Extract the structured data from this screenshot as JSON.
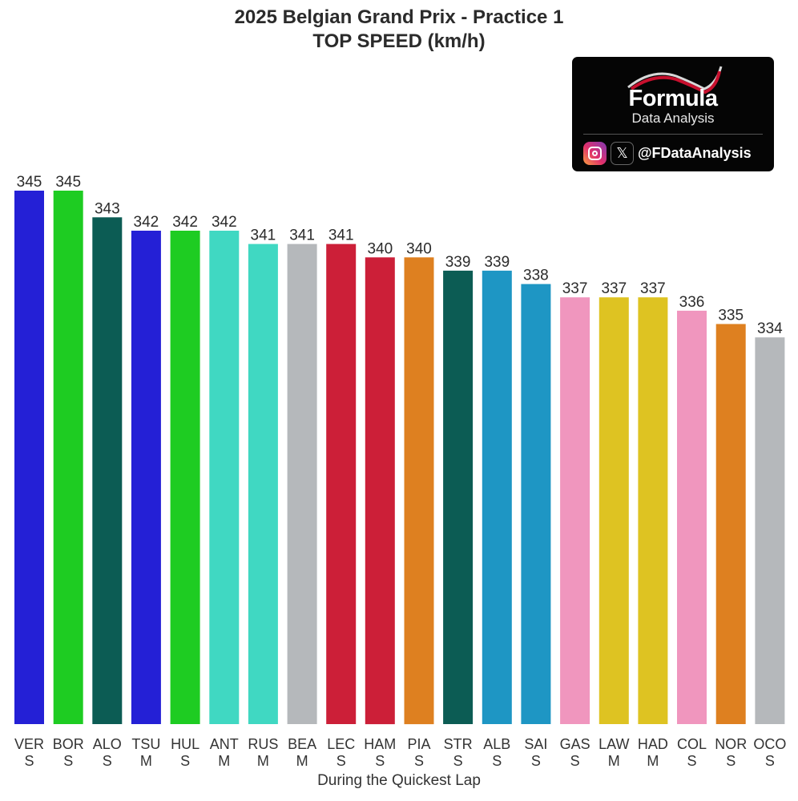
{
  "chart_data": {
    "type": "bar",
    "title": "2025 Belgian Grand Prix - Practice 1",
    "subtitle": "TOP SPEED (km/h)",
    "xlabel": "During the Quickest Lap",
    "ylabel": "",
    "categories": [
      "VER",
      "BOR",
      "ALO",
      "TSU",
      "HUL",
      "ANT",
      "RUS",
      "BEA",
      "LEC",
      "HAM",
      "PIA",
      "STR",
      "ALB",
      "SAI",
      "GAS",
      "LAW",
      "HAD",
      "COL",
      "NOR",
      "OCO"
    ],
    "tyres": [
      "S",
      "S",
      "S",
      "M",
      "S",
      "M",
      "M",
      "M",
      "S",
      "S",
      "S",
      "S",
      "S",
      "S",
      "S",
      "M",
      "M",
      "S",
      "S",
      "S"
    ],
    "values": [
      345,
      345,
      343,
      342,
      342,
      342,
      341,
      341,
      341,
      340,
      340,
      339,
      339,
      338,
      337,
      337,
      337,
      336,
      335,
      334
    ],
    "colors": [
      "#2420d6",
      "#1ecc22",
      "#0c5c54",
      "#2420d6",
      "#1ecc22",
      "#40d8c2",
      "#40d8c2",
      "#b5b8bb",
      "#cc1f38",
      "#cc1f38",
      "#de8020",
      "#0c5c54",
      "#1e96c4",
      "#1e96c4",
      "#f096be",
      "#dec322",
      "#dec322",
      "#f096be",
      "#de8020",
      "#b5b8bb"
    ],
    "ylim": [
      305,
      345
    ],
    "grid": false,
    "legend": "none"
  },
  "logo": {
    "brand": "Formula",
    "sub": "Data Analysis",
    "handle": "@FDataAnalysis",
    "x_glyph": "𝕏"
  }
}
